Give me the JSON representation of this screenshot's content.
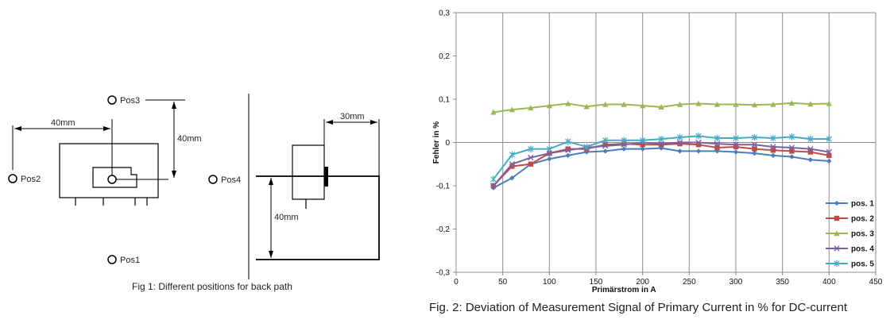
{
  "fig1": {
    "caption": "Fig 1: Different positions for back path",
    "positions": [
      "Pos1",
      "Pos2",
      "Pos3",
      "Pos4"
    ],
    "dims": {
      "horizontal": "40mm",
      "vertical": "40mm",
      "side_horizontal": "30mm",
      "side_vertical": "40mm"
    }
  },
  "chart_data": {
    "type": "line",
    "title": "",
    "caption": "Fig. 2: Deviation of Measurement Signal of Primary Current in % for DC-current",
    "xlabel": "Primärstrom in A",
    "ylabel": "Fehler in %",
    "xlim": [
      0,
      450
    ],
    "ylim": [
      -0.3,
      0.3
    ],
    "xticks": [
      0,
      50,
      100,
      150,
      200,
      250,
      300,
      350,
      400,
      450
    ],
    "yticks": [
      -0.3,
      -0.2,
      -0.1,
      0,
      0.1,
      0.2,
      0.3
    ],
    "ytick_labels": [
      "-0,3",
      "-0,2",
      "-0,1",
      "0",
      "0,1",
      "0,2",
      "0,3"
    ],
    "grid": "vertical",
    "legend_position": "bottom-right",
    "x": [
      40,
      60,
      80,
      100,
      120,
      140,
      160,
      180,
      200,
      220,
      240,
      260,
      280,
      300,
      320,
      340,
      360,
      380,
      400
    ],
    "series": [
      {
        "name": "pos. 1",
        "color": "#4a7ebb",
        "marker": "diamond",
        "values": [
          -0.105,
          -0.082,
          -0.05,
          -0.038,
          -0.03,
          -0.022,
          -0.02,
          -0.015,
          -0.015,
          -0.013,
          -0.02,
          -0.02,
          -0.02,
          -0.022,
          -0.025,
          -0.03,
          -0.033,
          -0.04,
          -0.043
        ]
      },
      {
        "name": "pos. 2",
        "color": "#be4b48",
        "marker": "square",
        "values": [
          -0.1,
          -0.055,
          -0.05,
          -0.025,
          -0.015,
          -0.015,
          -0.005,
          -0.003,
          -0.005,
          -0.005,
          -0.003,
          -0.005,
          -0.012,
          -0.01,
          -0.015,
          -0.018,
          -0.02,
          -0.022,
          -0.03
        ]
      },
      {
        "name": "pos. 3",
        "color": "#98b954",
        "marker": "triangle",
        "values": [
          0.07,
          0.076,
          0.08,
          0.085,
          0.09,
          0.083,
          0.088,
          0.088,
          0.085,
          0.082,
          0.088,
          0.09,
          0.088,
          0.088,
          0.087,
          0.088,
          0.091,
          0.089,
          0.09
        ]
      },
      {
        "name": "pos. 4",
        "color": "#7d60a0",
        "marker": "x",
        "values": [
          -0.1,
          -0.05,
          -0.035,
          -0.025,
          -0.018,
          -0.012,
          -0.008,
          -0.005,
          0.0,
          -0.003,
          0.0,
          0.0,
          -0.003,
          -0.005,
          -0.005,
          -0.01,
          -0.012,
          -0.015,
          -0.022
        ]
      },
      {
        "name": "pos. 5",
        "color": "#46aac5",
        "marker": "star",
        "values": [
          -0.085,
          -0.028,
          -0.015,
          -0.015,
          0.002,
          -0.01,
          0.005,
          0.005,
          0.005,
          0.008,
          0.012,
          0.015,
          0.01,
          0.01,
          0.012,
          0.01,
          0.013,
          0.008,
          0.008
        ]
      }
    ]
  }
}
